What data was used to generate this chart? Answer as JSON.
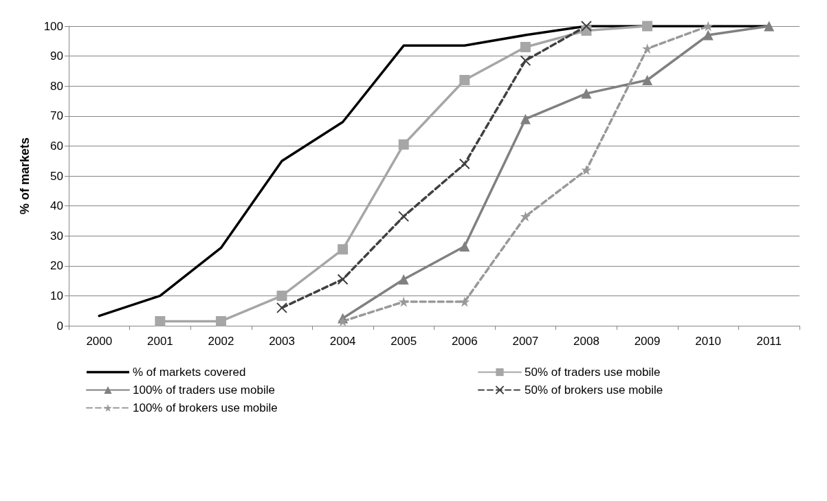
{
  "chart_data": {
    "type": "line",
    "ylabel": "% of markets",
    "categories": [
      "2000",
      "2001",
      "2002",
      "2003",
      "2004",
      "2005",
      "2006",
      "2007",
      "2008",
      "2009",
      "2010",
      "2011"
    ],
    "ylim": [
      0,
      100
    ],
    "yticks": [
      0,
      10,
      20,
      30,
      40,
      50,
      60,
      70,
      80,
      90,
      100
    ],
    "grid": "y",
    "legend": "bottom",
    "series": [
      {
        "name": "% of markets covered",
        "color": "#000000",
        "marker": "none",
        "line_style": "solid",
        "values": [
          3.3,
          10,
          26,
          55,
          68,
          93.5,
          93.5,
          97,
          100,
          100,
          100,
          100
        ]
      },
      {
        "name": "50% of traders use mobile",
        "color": "#a6a6a6",
        "marker": "square",
        "line_style": "solid",
        "values": [
          null,
          1.5,
          1.5,
          10,
          25.5,
          60.5,
          82,
          93,
          98.5,
          100,
          null,
          null
        ]
      },
      {
        "name": "100% of traders use mobile",
        "color": "#808080",
        "marker": "triangle",
        "line_style": "solid",
        "values": [
          null,
          null,
          null,
          null,
          2.5,
          15.5,
          26.5,
          69,
          77.5,
          82,
          97,
          100
        ]
      },
      {
        "name": "50% of brokers use mobile",
        "color": "#404040",
        "marker": "cross",
        "line_style": "dashed",
        "values": [
          null,
          null,
          null,
          6,
          15.5,
          36.5,
          54,
          88.5,
          100,
          null,
          null,
          null
        ]
      },
      {
        "name": "100% of brokers use mobile",
        "color": "#999999",
        "marker": "star",
        "line_style": "dashed",
        "values": [
          null,
          null,
          null,
          null,
          1.5,
          8,
          8,
          36.5,
          52,
          92.5,
          100,
          null
        ]
      }
    ]
  }
}
